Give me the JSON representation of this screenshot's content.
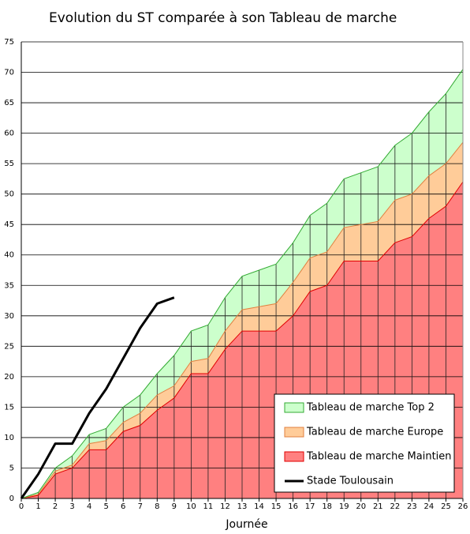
{
  "chart_data": {
    "type": "stacked_area_line",
    "title": "Evolution du ST comparée à son Tableau de marche",
    "xlabel": "Journée",
    "x": [
      0,
      1,
      2,
      3,
      4,
      5,
      6,
      7,
      8,
      9,
      10,
      11,
      12,
      13,
      14,
      15,
      16,
      17,
      18,
      19,
      20,
      21,
      22,
      23,
      24,
      25,
      26
    ],
    "xlim": [
      0,
      26
    ],
    "xticks": [
      0,
      1,
      2,
      3,
      4,
      5,
      6,
      7,
      8,
      9,
      10,
      11,
      12,
      13,
      14,
      15,
      16,
      17,
      18,
      19,
      20,
      21,
      22,
      23,
      24,
      25,
      26
    ],
    "ylim": [
      0,
      75
    ],
    "yticks": [
      0,
      5,
      10,
      15,
      20,
      25,
      30,
      35,
      40,
      45,
      50,
      55,
      60,
      65,
      70,
      75
    ],
    "grid": true,
    "legend": "lower right",
    "series": [
      {
        "name": "Tableau de marche Maintien",
        "color": "#ff8080",
        "line_color": "#e00000",
        "values": [
          0,
          0.5,
          4,
          5,
          8,
          8,
          11,
          12,
          14.5,
          16.5,
          20.5,
          20.5,
          24.5,
          27.5,
          27.5,
          27.5,
          30,
          34,
          35,
          39,
          39,
          39,
          42,
          43,
          46,
          48,
          52
        ]
      },
      {
        "name": "Tableau de marche Europe",
        "color": "#ffcc99",
        "line_color": "#e08040",
        "values": [
          0,
          0.2,
          0.5,
          0.5,
          1,
          1.5,
          1.5,
          2,
          2.5,
          2,
          2,
          2.5,
          3,
          3.5,
          4,
          4.5,
          5.5,
          5.5,
          5.5,
          5.5,
          6,
          6.5,
          7,
          7,
          7,
          7,
          6.5
        ]
      },
      {
        "name": "Tableau de marche Top 2",
        "color": "#ccffcc",
        "line_color": "#33aa33",
        "values": [
          0,
          0.3,
          0.5,
          1.5,
          1.5,
          2,
          2.5,
          3,
          3.5,
          5,
          5,
          5.5,
          5.5,
          5.5,
          6,
          6.5,
          6.5,
          7,
          8,
          8,
          8.5,
          9,
          9,
          10,
          10.5,
          11.5,
          12
        ]
      },
      {
        "name": "Stade Toulousain",
        "color": "#000000",
        "kind": "line",
        "values": [
          0,
          4,
          9,
          9,
          14,
          18,
          23,
          28,
          32,
          33,
          null,
          null,
          null,
          null,
          null,
          null,
          null,
          null,
          null,
          null,
          null,
          null,
          null,
          null,
          null,
          null,
          null
        ]
      }
    ]
  }
}
